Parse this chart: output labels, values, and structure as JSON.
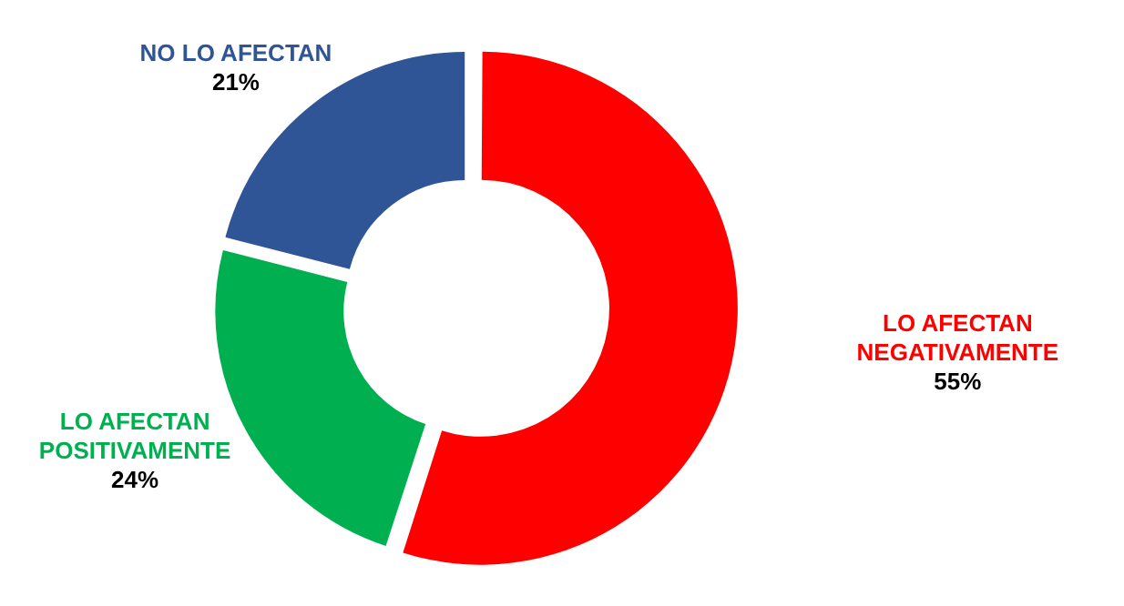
{
  "chart_data": {
    "type": "donut",
    "categories": [
      "LO AFECTAN NEGATIVAMENTE",
      "LO AFECTAN POSITIVAMENTE",
      "NO LO AFECTAN"
    ],
    "values": [
      55,
      24,
      21
    ],
    "colors": [
      "#ff0000",
      "#00b050",
      "#2f5597"
    ],
    "value_labels": [
      "55%",
      "24%",
      "21%"
    ],
    "legend": false
  }
}
